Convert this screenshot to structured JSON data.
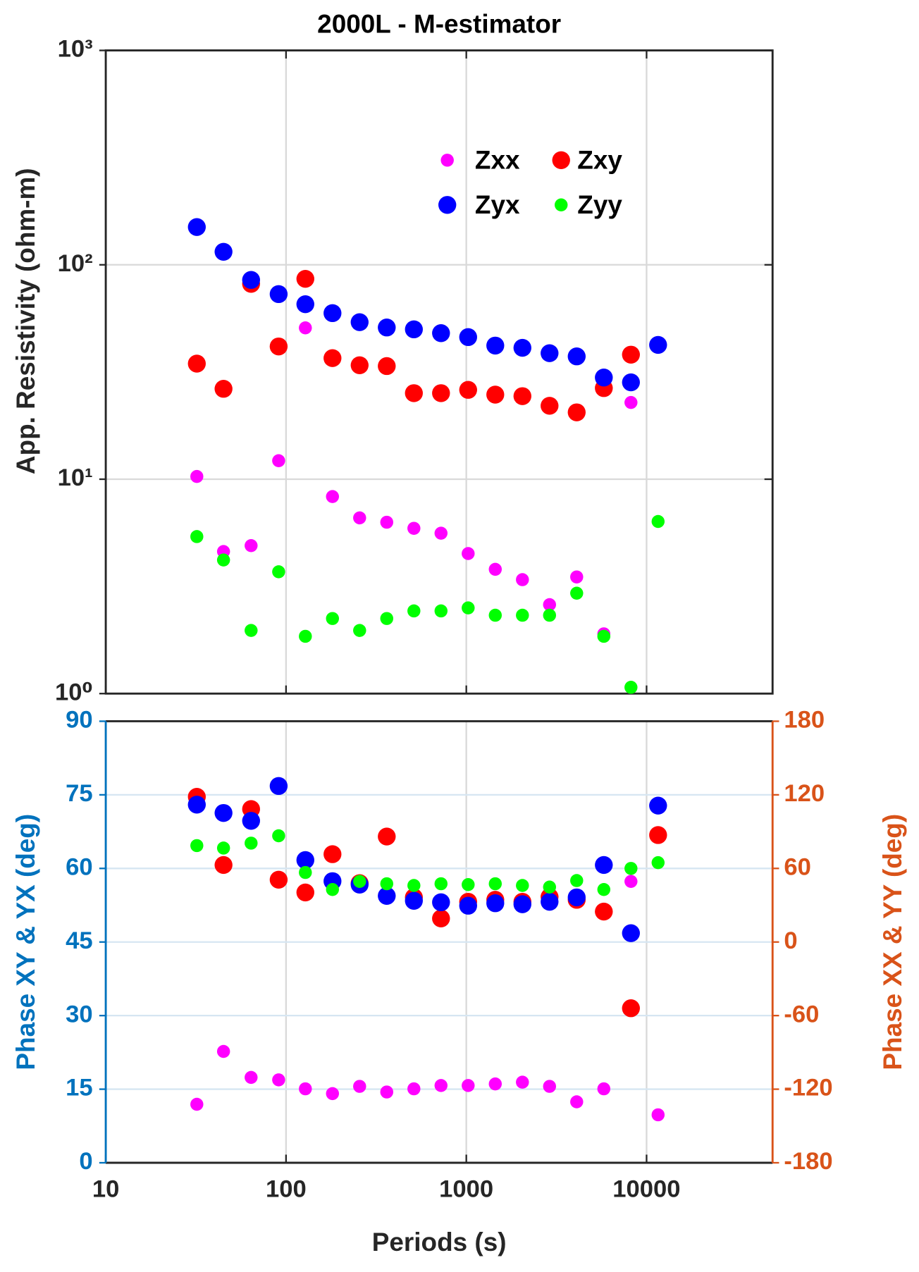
{
  "chart_data": [
    {
      "type": "scatter",
      "title": "2000L - M-estimator",
      "ylabel": "App. Resistivity (ohm-m)",
      "xlog": true,
      "ylog": true,
      "grid": true,
      "legend": "upper right",
      "xlim": [
        10,
        50000
      ],
      "ylim": [
        1,
        1000
      ],
      "yticks": [
        {
          "value": 1,
          "label": "10⁰"
        },
        {
          "value": 10,
          "label": "10¹"
        },
        {
          "value": 100,
          "label": "10²"
        },
        {
          "value": 1000,
          "label": "10³"
        }
      ],
      "x": [
        32,
        45,
        64,
        91,
        128,
        181,
        256,
        362,
        512,
        724,
        1024,
        1448,
        2048,
        2896,
        4096,
        5793,
        8192,
        11585
      ],
      "series": [
        {
          "name": "Zxx",
          "color": "#ff00ff",
          "marker_size": 8,
          "values": [
            10.3,
            4.6,
            4.9,
            12.2,
            50.8,
            8.3,
            6.6,
            6.3,
            5.9,
            5.6,
            4.5,
            3.8,
            3.4,
            2.6,
            3.5,
            1.9,
            22.8,
            null
          ]
        },
        {
          "name": "Zxy",
          "color": "#ff0000",
          "marker_size": 11,
          "values": [
            34.6,
            26.4,
            81.5,
            41.6,
            86,
            36.7,
            34,
            33.7,
            25.2,
            25.2,
            26.1,
            24.8,
            24.4,
            22,
            20.5,
            26.6,
            38.1,
            null
          ]
        },
        {
          "name": "Zyx",
          "color": "#0000ff",
          "marker_size": 11,
          "values": [
            150,
            115,
            85,
            73,
            65.5,
            59.5,
            54,
            51,
            50,
            48,
            46,
            42,
            41,
            38.7,
            37.4,
            29.8,
            28.3,
            42.3
          ]
        },
        {
          "name": "Zyy",
          "color": "#00ff00",
          "marker_size": 8,
          "values": [
            5.4,
            4.2,
            1.97,
            3.7,
            1.85,
            2.24,
            1.97,
            2.24,
            2.43,
            2.43,
            2.51,
            2.32,
            2.32,
            2.32,
            2.94,
            1.85,
            1.07,
            6.35
          ]
        }
      ]
    },
    {
      "type": "scatter",
      "xlabel": "Periods (s)",
      "ylabel": "Phase XY & YX (deg)",
      "y2label": "Phase XX & YY (deg)",
      "xlog": true,
      "grid": true,
      "ycolor": "#0072bd",
      "y2color": "#d95319",
      "xlim": [
        10,
        50000
      ],
      "ylim": [
        0,
        90
      ],
      "y2lim": [
        -180,
        180
      ],
      "xticks": [
        10,
        100,
        1000,
        10000
      ],
      "yticks": [
        0,
        15,
        30,
        45,
        60,
        75,
        90
      ],
      "y2ticks": [
        -180,
        -120,
        -60,
        0,
        60,
        120,
        180
      ],
      "x": [
        32,
        45,
        64,
        91,
        128,
        181,
        256,
        362,
        512,
        724,
        1024,
        1448,
        2048,
        2896,
        4096,
        5793,
        8192,
        11585
      ],
      "series": [
        {
          "color": "#ff00ff",
          "marker_size": 8,
          "axis": "y2",
          "values": [
            -132.3,
            -89.2,
            -110.4,
            -112.4,
            -119.7,
            -123.6,
            -117.7,
            -122.3,
            -119.7,
            -117,
            -117,
            -115.7,
            -114.3,
            -117.7,
            -130.3,
            -119.7,
            49.4,
            -140.9
          ]
        },
        {
          "color": "#ff0000",
          "marker_size": 11,
          "values": [
            74.6,
            60.7,
            72.1,
            57.7,
            55.1,
            62.9,
            57,
            66.5,
            54.1,
            49.8,
            53.2,
            53.6,
            53.2,
            54.2,
            53.6,
            51.2,
            31.5,
            66.8
          ]
        },
        {
          "color": "#0000ff",
          "marker_size": 11,
          "values": [
            73,
            71.3,
            69.7,
            76.8,
            61.7,
            57.4,
            56.7,
            54.4,
            53.4,
            53.1,
            52.4,
            52.9,
            52.7,
            53.2,
            54.1,
            60.7,
            46.8,
            72.8
          ]
        },
        {
          "color": "#00ff00",
          "marker_size": 8,
          "axis": "y2",
          "values": [
            78.6,
            76.6,
            80.6,
            86.6,
            56.7,
            42.8,
            49.4,
            47.5,
            46.1,
            47.5,
            46.8,
            47.5,
            46.1,
            44.8,
            50.1,
            42.8,
            60,
            64.7
          ]
        }
      ]
    }
  ]
}
